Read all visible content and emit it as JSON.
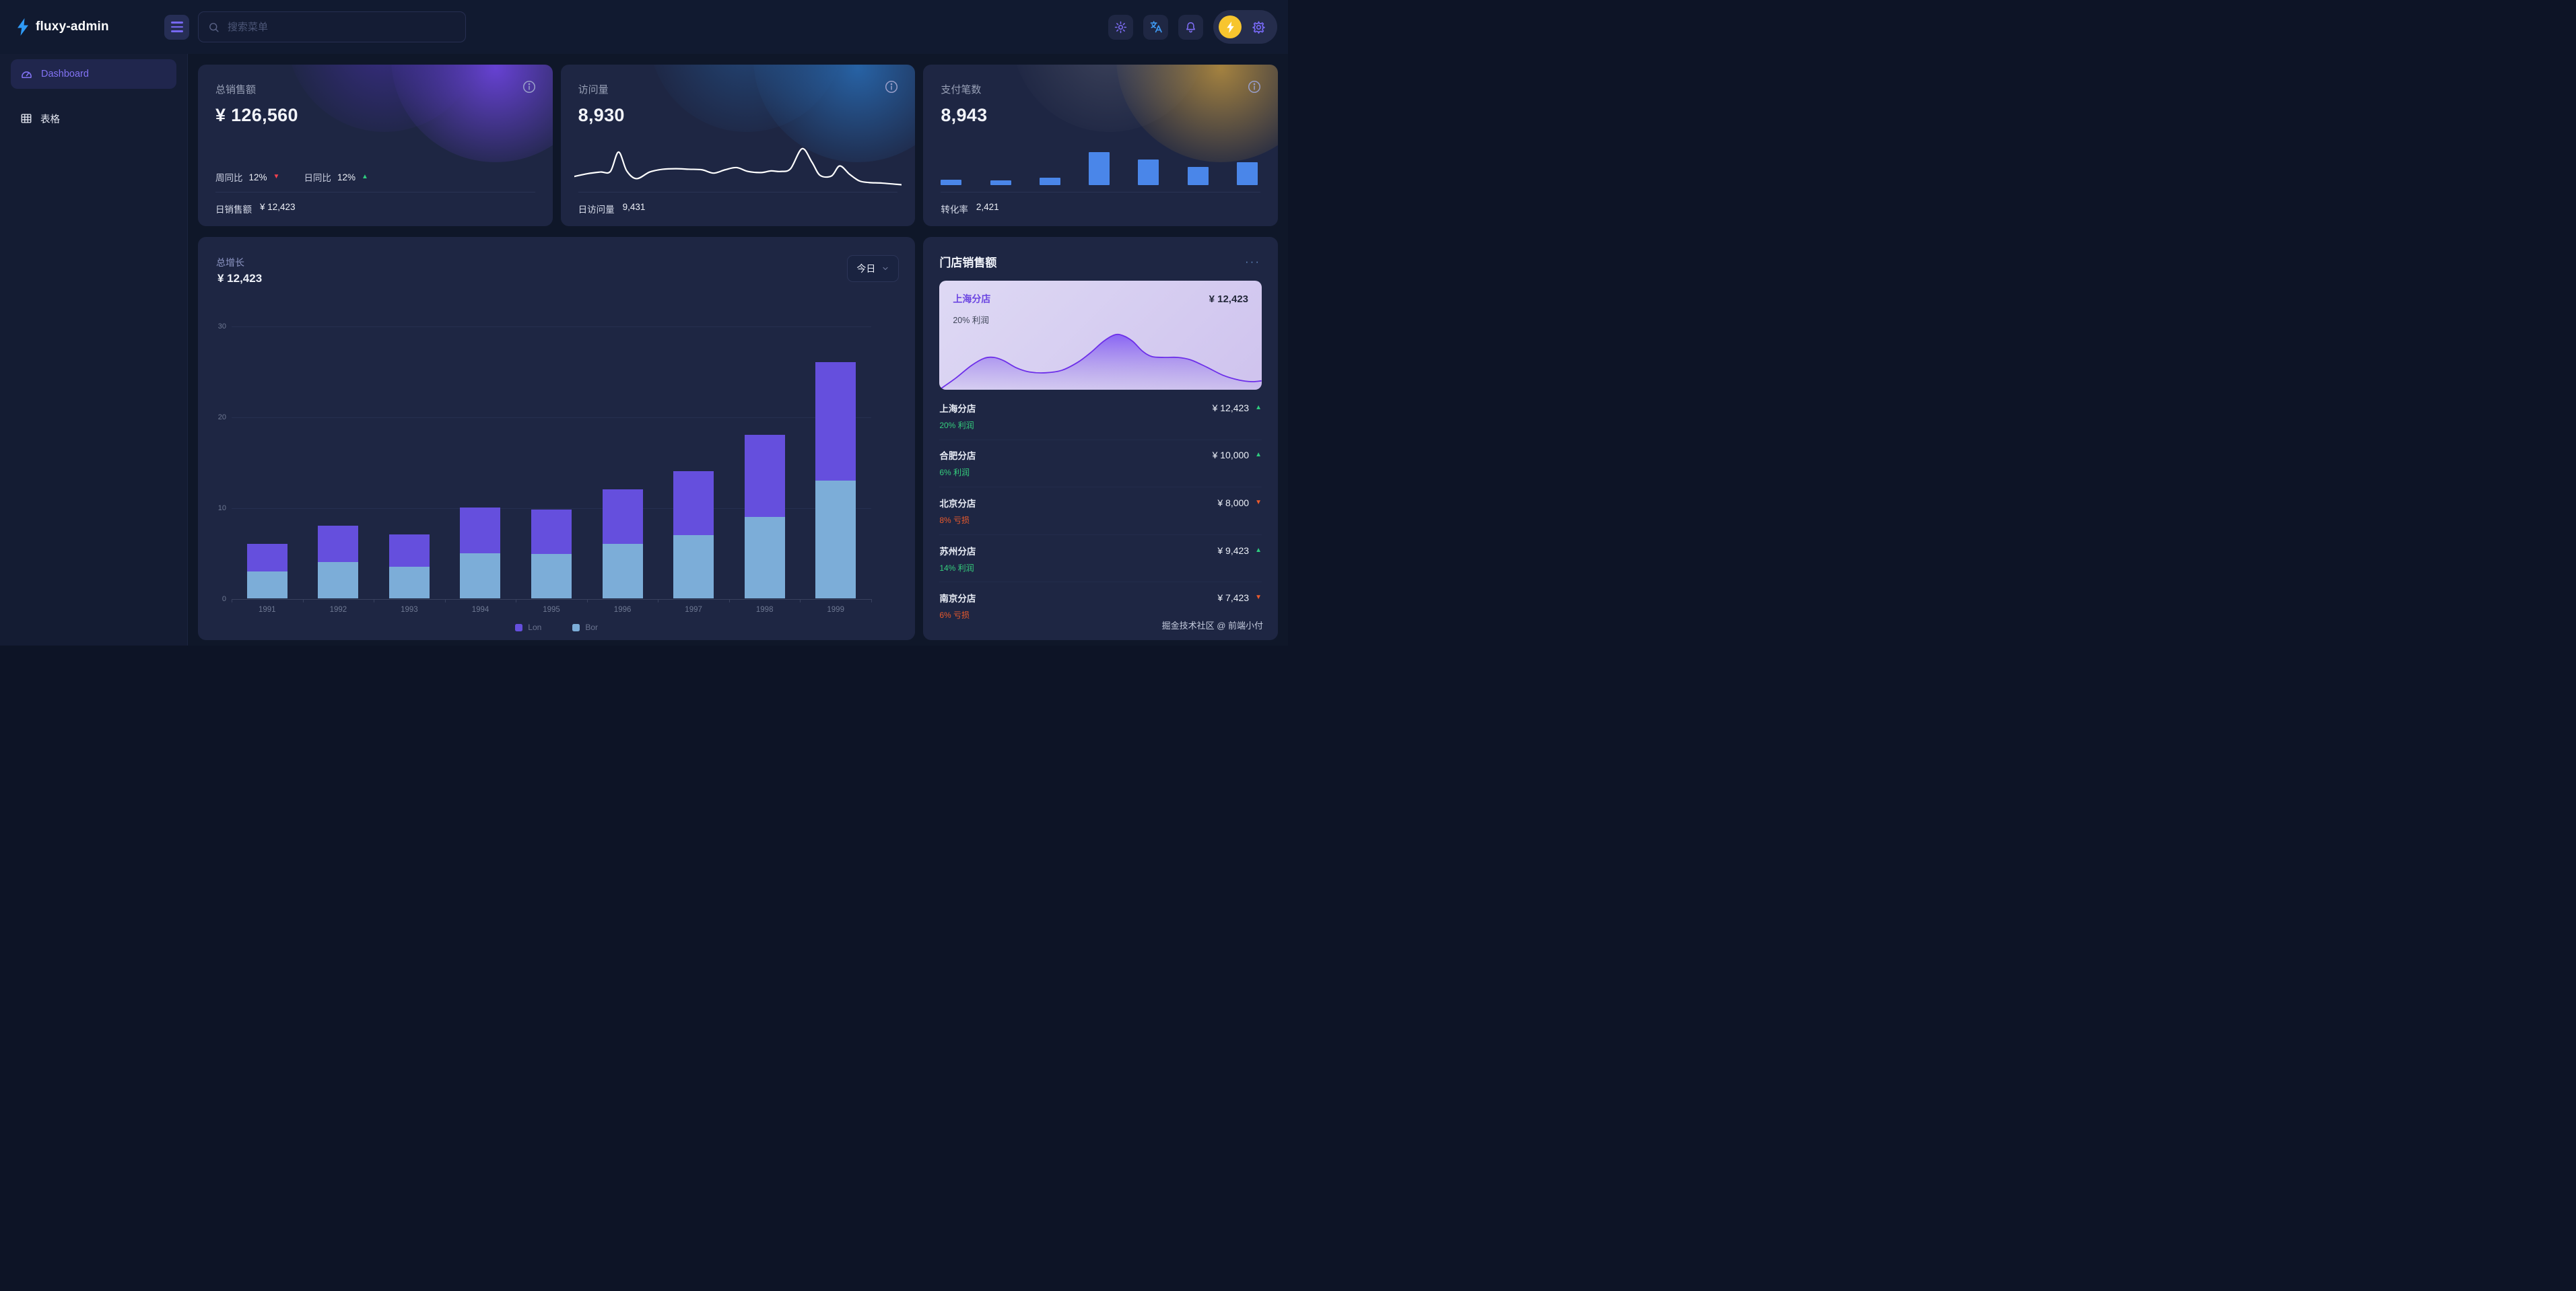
{
  "app": {
    "title": "fluxy-admin"
  },
  "header": {
    "search": {
      "placeholder": "搜索菜单"
    },
    "icon_names": [
      "search-icon",
      "theme-sun-icon",
      "translate-icon",
      "bell-icon",
      "bolt-icon",
      "gear-icon"
    ]
  },
  "sidebar": {
    "items": [
      {
        "label": "Dashboard",
        "icon": "dashboard-gauge-icon",
        "active": true
      },
      {
        "label": "表格",
        "icon": "table-icon",
        "active": false
      }
    ]
  },
  "stat_cards": {
    "sales": {
      "title": "总销售额",
      "value": "¥ 126,560",
      "trends": [
        {
          "label": "周同比",
          "value": "12%",
          "direction": "down"
        },
        {
          "label": "日同比",
          "value": "12%",
          "direction": "up"
        }
      ],
      "footer_label": "日销售额",
      "footer_value": "¥ 12,423",
      "accent": "#7848f5"
    },
    "visits": {
      "title": "访问量",
      "value": "8,930",
      "footer_label": "日访问量",
      "footer_value": "9,431",
      "accent": "#2a76c5"
    },
    "payments": {
      "title": "支付笔数",
      "value": "8,943",
      "footer_label": "转化率",
      "footer_value": "2,421",
      "accent": "#d0a03e"
    }
  },
  "growth": {
    "title": "总增长",
    "value": "¥ 12,423",
    "range_label": "今日"
  },
  "stores": {
    "title": "门店销售额",
    "featured": {
      "name": "上海分店",
      "value": "¥ 12,423",
      "profit": "20% 利润"
    },
    "rows": [
      {
        "name": "上海分店",
        "value": "¥ 12,423",
        "trend": "up",
        "note": "20% 利润",
        "note_type": "profit"
      },
      {
        "name": "合肥分店",
        "value": "¥ 10,000",
        "trend": "up",
        "note": "6% 利润",
        "note_type": "profit"
      },
      {
        "name": "北京分店",
        "value": "¥ 8,000",
        "trend": "down",
        "note": "8% 亏损",
        "note_type": "loss"
      },
      {
        "name": "苏州分店",
        "value": "¥ 9,423",
        "trend": "up",
        "note": "14% 利润",
        "note_type": "profit"
      },
      {
        "name": "南京分店",
        "value": "¥ 7,423",
        "trend": "down",
        "note": "6% 亏损",
        "note_type": "loss"
      }
    ],
    "watermark": "掘金技术社区 @ 前端小付"
  },
  "colors": {
    "up_green": "#2ecb7e",
    "down_red": "#f4404e",
    "loss_orange": "#eb5a2c",
    "bar_purple": "#654fdd",
    "bar_blue": "#7cadd8",
    "minibar_blue": "#4a86e9",
    "brand_blue": "#2f9bf7",
    "accent_purple": "#7668f2",
    "bolt_yellow": "#f7c52e"
  },
  "chart_data": [
    {
      "id": "growth-stacked-bar",
      "type": "bar",
      "stacked": true,
      "title": "总增长",
      "categories": [
        "1991",
        "1992",
        "1993",
        "1994",
        "1995",
        "1996",
        "1997",
        "1998",
        "1999"
      ],
      "series": [
        {
          "name": "Bor",
          "color": "#7cadd8",
          "stack_order": "bottom",
          "values": [
            3,
            4,
            3.5,
            5,
            4.9,
            6,
            7,
            9,
            13
          ]
        },
        {
          "name": "Lon",
          "color": "#654fdd",
          "stack_order": "top",
          "values": [
            3,
            4,
            3.5,
            5,
            4.9,
            6,
            7,
            9,
            13
          ]
        }
      ],
      "legend": [
        "Lon",
        "Bor"
      ],
      "ylim": [
        0,
        30
      ],
      "yticks": [
        0,
        10,
        20,
        30
      ],
      "grid": true,
      "legend_position": "bottom"
    },
    {
      "id": "visits-sparkline",
      "type": "line",
      "color": "#ffffff",
      "points": [
        [
          0,
          31
        ],
        [
          4,
          28.5
        ],
        [
          8,
          27
        ],
        [
          11,
          26.5
        ],
        [
          13.5,
          9
        ],
        [
          16,
          26
        ],
        [
          19,
          33
        ],
        [
          23,
          27
        ],
        [
          27,
          24.5
        ],
        [
          31,
          24
        ],
        [
          35,
          24.5
        ],
        [
          39,
          25
        ],
        [
          42.5,
          28
        ],
        [
          46,
          25
        ],
        [
          49.5,
          23
        ],
        [
          53,
          26.5
        ],
        [
          57,
          27.5
        ],
        [
          60,
          26
        ],
        [
          63,
          26.5
        ],
        [
          66,
          24
        ],
        [
          69.5,
          6
        ],
        [
          72.5,
          18
        ],
        [
          75,
          30
        ],
        [
          78.5,
          30.5
        ],
        [
          81,
          21.5
        ],
        [
          84,
          29
        ],
        [
          87,
          35
        ],
        [
          90,
          36.5
        ],
        [
          94,
          37
        ],
        [
          100,
          38.5
        ]
      ]
    },
    {
      "id": "payments-minibars",
      "type": "bar",
      "color": "#4a86e9",
      "values": [
        16,
        14,
        22,
        100,
        78,
        55,
        69
      ]
    },
    {
      "id": "featured-store-area",
      "type": "area",
      "line_color": "#6d2fe9",
      "fill_from": "rgba(124,82,245,0.85)",
      "fill_to": "rgba(150,120,230,0.06)",
      "points": [
        [
          0,
          40
        ],
        [
          5,
          33
        ],
        [
          10,
          25
        ],
        [
          14,
          20.5
        ],
        [
          17,
          20
        ],
        [
          20,
          22
        ],
        [
          24,
          26.5
        ],
        [
          28,
          29
        ],
        [
          33,
          29.5
        ],
        [
          38,
          28
        ],
        [
          43,
          23
        ],
        [
          47,
          17
        ],
        [
          51,
          10
        ],
        [
          54.5,
          6
        ],
        [
          57,
          6.5
        ],
        [
          60,
          10
        ],
        [
          63,
          16
        ],
        [
          66,
          19.5
        ],
        [
          70,
          20
        ],
        [
          74,
          20
        ],
        [
          78,
          21.5
        ],
        [
          83,
          26
        ],
        [
          88,
          31
        ],
        [
          93,
          34
        ],
        [
          97,
          35
        ],
        [
          100,
          34.5
        ]
      ]
    }
  ]
}
